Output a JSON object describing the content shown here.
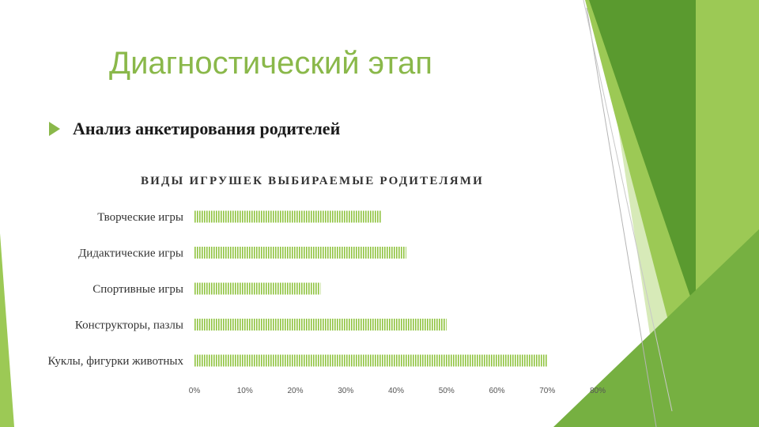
{
  "slide": {
    "title": "Диагностический этап",
    "bullet": "Анализ анкетирования родителей"
  },
  "colors": {
    "accent": "#8ab84a",
    "bar": "#8fc33f",
    "deco_dark": "#5a9a2f",
    "deco_mid": "#76b041",
    "deco_light": "#9cc955",
    "deco_pale": "#d7eab8"
  },
  "chart_data": {
    "type": "bar",
    "orientation": "horizontal",
    "title": "ВИДЫ ИГРУШЕК ВЫБИРАЕМЫЕ РОДИТЕЛЯМИ",
    "categories": [
      "Творческие игры",
      "Дидактические игры",
      "Спортивные игры",
      "Конструкторы, пазлы",
      "Куклы, фигурки животных"
    ],
    "values": [
      0.37,
      0.42,
      0.25,
      0.5,
      0.7
    ],
    "xlim": [
      0,
      0.8
    ],
    "xticks": [
      "0%",
      "10%",
      "20%",
      "30%",
      "40%",
      "50%",
      "60%",
      "70%",
      "80%"
    ],
    "grid": false,
    "legend": "none"
  }
}
